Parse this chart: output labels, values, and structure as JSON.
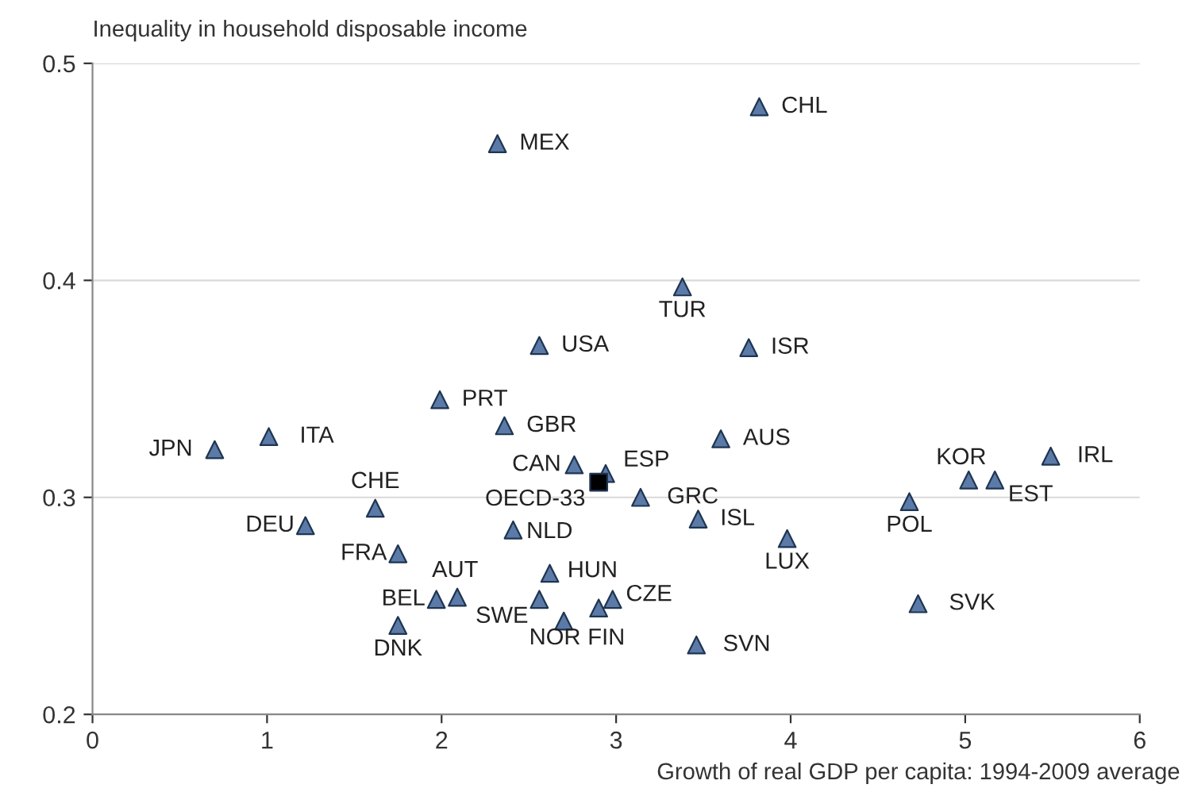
{
  "chart_data": {
    "type": "scatter",
    "ylabel": "Inequality in household disposable income",
    "xlabel": "Growth of real GDP per capita: 1994-2009 average",
    "series": [
      {
        "color": "#5b7aa8",
        "marker": "triangle",
        "x": [
          3.82,
          2.32,
          3.38,
          2.56,
          3.76,
          1.99,
          2.36,
          1.01,
          0.7,
          3.6,
          5.49,
          5.02,
          5.17,
          2.76,
          2.94,
          3.14,
          4.68,
          1.62,
          3.47,
          1.22,
          2.41,
          3.98,
          1.75,
          2.62,
          1.97,
          2.09,
          2.56,
          2.98,
          2.9,
          2.7,
          1.75,
          4.73,
          3.46
        ],
        "values": [
          0.48,
          0.463,
          0.397,
          0.37,
          0.369,
          0.345,
          0.333,
          0.328,
          0.322,
          0.327,
          0.319,
          0.308,
          0.308,
          0.315,
          0.311,
          0.3,
          0.298,
          0.295,
          0.29,
          0.287,
          0.285,
          0.281,
          0.274,
          0.265,
          0.253,
          0.254,
          0.253,
          0.253,
          0.249,
          0.243,
          0.241,
          0.251,
          0.232
        ],
        "value_labels": [
          "CHL",
          "MEX",
          "TUR",
          "USA",
          "ISR",
          "PRT",
          "GBR",
          "ITA",
          "JPN",
          "AUS",
          "IRL",
          "KOR",
          "EST",
          "CAN",
          "ESP",
          "GRC",
          "POL",
          "CHE",
          "ISL",
          "DEU",
          "NLD",
          "LUX",
          "FRA",
          "HUN",
          "BEL",
          "AUT",
          "SWE",
          "CZE",
          "FIN",
          "NOR",
          "DNK",
          "SVK",
          "SVN"
        ]
      },
      {
        "color": "#000000",
        "marker": "square",
        "x": [
          2.9
        ],
        "values": [
          0.307
        ],
        "value_labels": [
          "OECD-33"
        ]
      }
    ],
    "xlim": [
      0,
      6
    ],
    "xticks": [
      0,
      1,
      2,
      3,
      4,
      5,
      6
    ],
    "ylim": [
      0.2,
      0.5
    ],
    "yticks": [
      0.2,
      0.3,
      0.4,
      0.5
    ],
    "grid": "y"
  }
}
